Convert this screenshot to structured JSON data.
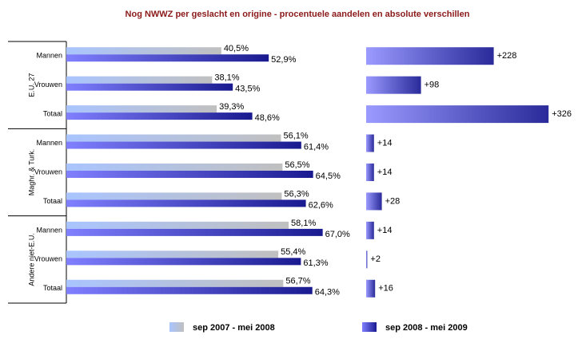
{
  "chart_data": [
    {
      "type": "bar",
      "title": "Nog NWWZ per geslacht en origine - procentuele aandelen en absolute verschillen",
      "groups": [
        {
          "name": "E.U. 27",
          "categories": [
            "Mannen",
            "Vrouwen",
            "Totaal"
          ]
        },
        {
          "name": "Maghr. & Turk.",
          "categories": [
            "Mannen",
            "Vrouwen",
            "Totaal"
          ]
        },
        {
          "name": "Andere niet-E.U.",
          "categories": [
            "Mannen",
            "Vrouwen",
            "Totaal"
          ]
        }
      ],
      "series": [
        {
          "name": "sep 2007 - mei 2008",
          "color": "#c0c0c0",
          "values": [
            40.5,
            38.1,
            39.3,
            56.1,
            56.5,
            56.3,
            58.1,
            55.4,
            56.7
          ],
          "value_labels": [
            "40,5%",
            "38,1%",
            "39,3%",
            "56,1%",
            "56,5%",
            "56,3%",
            "58,1%",
            "55,4%",
            "56,7%"
          ]
        },
        {
          "name": "sep 2008 - mei 2009",
          "color": "#1a1a90",
          "values": [
            52.9,
            43.5,
            48.6,
            61.4,
            64.5,
            62.6,
            67.0,
            61.3,
            64.3
          ],
          "value_labels": [
            "52,9%",
            "43,5%",
            "48,6%",
            "61,4%",
            "64,5%",
            "62,6%",
            "67,0%",
            "61,3%",
            "64,3%"
          ]
        }
      ],
      "xlim": [
        0,
        70
      ]
    },
    {
      "type": "bar",
      "values": [
        228,
        98,
        326,
        14,
        14,
        28,
        14,
        2,
        16
      ],
      "value_labels": [
        "+228",
        "+98",
        "+326",
        "+14",
        "+14",
        "+28",
        "+14",
        "+2",
        "+16"
      ],
      "color": "#2a2a9a",
      "xlim": [
        0,
        330
      ]
    }
  ]
}
